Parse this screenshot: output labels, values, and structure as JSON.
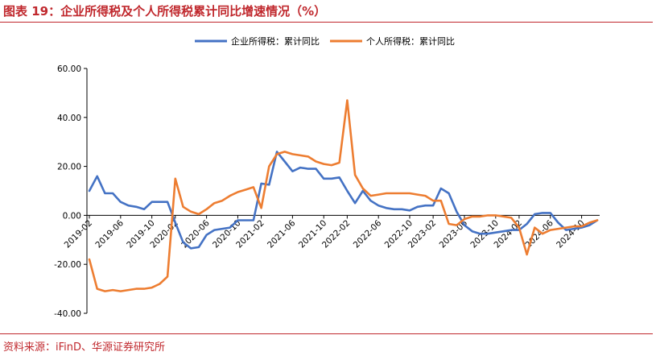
{
  "header": {
    "title": "图表 19：企业所得税及个人所得税累计同比增速情况（%）"
  },
  "footer": {
    "source": "资料来源：iFinD、华源证券研究所"
  },
  "chart_data": {
    "type": "line",
    "ylim": [
      -40,
      60
    ],
    "yticks": [
      "60.00",
      "40.00",
      "20.00",
      "0.00",
      "-20.00",
      "-40.00"
    ],
    "ytick_values": [
      60,
      40,
      20,
      0,
      -20,
      -40
    ],
    "xtick_labels": [
      "2019-02",
      "2019-06",
      "2019-10",
      "2020-02",
      "2020-06",
      "2020-10",
      "2021-02",
      "2021-06",
      "2021-10",
      "2022-02",
      "2022-06",
      "2022-10",
      "2023-02",
      "2023-06",
      "2023-10",
      "2024-02",
      "2024-06",
      "2024-10"
    ],
    "x": [
      "2019-02",
      "2019-03",
      "2019-04",
      "2019-05",
      "2019-06",
      "2019-07",
      "2019-08",
      "2019-09",
      "2019-10",
      "2019-11",
      "2019-12",
      "2020-02",
      "2020-03",
      "2020-04",
      "2020-05",
      "2020-06",
      "2020-07",
      "2020-08",
      "2020-09",
      "2020-10",
      "2020-11",
      "2020-12",
      "2021-02",
      "2021-03",
      "2021-04",
      "2021-05",
      "2021-06",
      "2021-07",
      "2021-08",
      "2021-09",
      "2021-10",
      "2021-11",
      "2021-12",
      "2022-02",
      "2022-03",
      "2022-04",
      "2022-05",
      "2022-06",
      "2022-07",
      "2022-08",
      "2022-09",
      "2022-10",
      "2022-11",
      "2022-12",
      "2023-02",
      "2023-03",
      "2023-04",
      "2023-05",
      "2023-06",
      "2023-07",
      "2023-08",
      "2023-09",
      "2023-10",
      "2023-11",
      "2023-12",
      "2024-02",
      "2024-03",
      "2024-04",
      "2024-05",
      "2024-06",
      "2024-07",
      "2024-08",
      "2024-09",
      "2024-10",
      "2024-11",
      "2024-12"
    ],
    "legend_position": "top",
    "grid": false,
    "series": [
      {
        "name": "企业所得税：累计同比",
        "color": "#4472c4",
        "values": [
          10,
          16,
          9,
          9,
          5.5,
          4,
          3.5,
          2.5,
          5.5,
          5.5,
          5.5,
          -3,
          -11,
          -13.5,
          -13,
          -8,
          -6,
          -5.5,
          -5,
          -2,
          -2,
          -2,
          13,
          12.5,
          26,
          22,
          18,
          19.5,
          19,
          19,
          15,
          15,
          15.5,
          10,
          5,
          10,
          6,
          4,
          3,
          2.5,
          2.5,
          2,
          3.5,
          4,
          4,
          11,
          9,
          1.5,
          -4,
          -6.5,
          -7.5,
          -7.5,
          -7,
          -6.5,
          -6,
          -6,
          -3.5,
          0.5,
          1,
          1,
          -3,
          -6,
          -5.5,
          -5,
          -4,
          -2
        ]
      },
      {
        "name": "个人所得税：累计同比",
        "color": "#ed7d31",
        "values": [
          -18,
          -30,
          -31,
          -30.5,
          -31,
          -30.5,
          -30,
          -30,
          -29.5,
          -28,
          -25,
          15,
          3.5,
          1.5,
          0.5,
          2.5,
          5,
          6,
          8,
          9.5,
          10.5,
          11.5,
          3,
          20,
          25,
          26,
          25,
          24.5,
          24,
          22,
          21,
          20.5,
          21.5,
          47,
          16.5,
          11,
          8,
          8.5,
          9,
          9,
          9,
          9,
          8.5,
          8,
          6,
          6,
          -3.5,
          -4,
          -1.5,
          -0.5,
          -0.5,
          0,
          0,
          -0.5,
          -1,
          -5,
          -16,
          -5,
          -7.5,
          -6,
          -5.5,
          -5,
          -4.5,
          -4.5,
          -3,
          -2
        ]
      }
    ]
  }
}
